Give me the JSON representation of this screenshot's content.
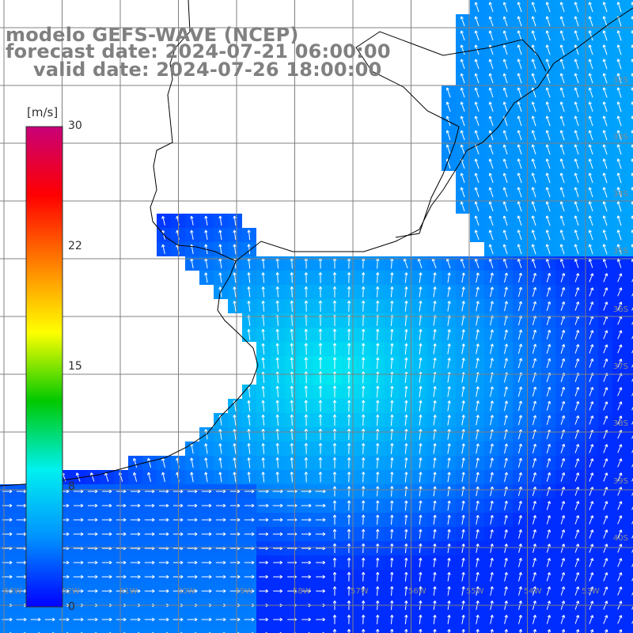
{
  "map": {
    "title": "modelo GEFS-WAVE (NCEP)",
    "forecast_label": "forecast date: 2024-07-21 06:00:00",
    "valid_label": "valid date: 2024-07-26 18:00:00",
    "variable": "wind speed and direction",
    "colorbar": {
      "unit": "[m/s]",
      "ticks": [
        "30",
        "22",
        "15",
        "8",
        "0"
      ],
      "min": 0,
      "max": 30,
      "colors": [
        "#0000ff",
        "#0090ff",
        "#00f0f0",
        "#00c800",
        "#ffff00",
        "#ff8000",
        "#ff0000",
        "#c80078"
      ]
    },
    "lat_labels": [
      "32S",
      "33S",
      "34S",
      "35S",
      "36S",
      "37S",
      "38S",
      "39S",
      "40S"
    ],
    "lon_labels": [
      "63W",
      "62W",
      "61W",
      "60W",
      "59W",
      "58W",
      "57W",
      "56W",
      "55W",
      "54W",
      "53W"
    ],
    "colors": {
      "land": "#ffffff",
      "grid": "#808080",
      "coastline": "#000000",
      "vector": "#ffffff",
      "title_text": "#808080"
    }
  }
}
